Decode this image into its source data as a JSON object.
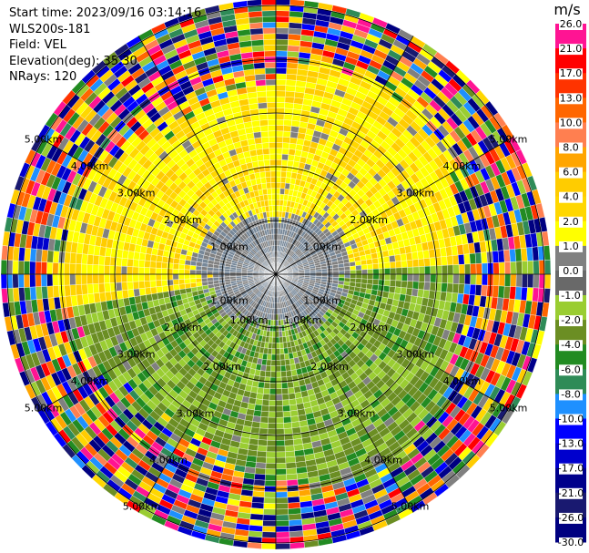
{
  "info": {
    "start_time": "Start time: 2023/09/16 03:14:16",
    "instrument": "WLS200s-181",
    "field": "Field: VEL",
    "elevation": "Elevation(deg): 35.30",
    "nrays": "NRays: 120"
  },
  "chart_data": {
    "type": "heatmap",
    "projection": "polar-ppi",
    "field": "VEL",
    "unit": "m/s",
    "nrays": 120,
    "range_rings": [
      {
        "label": "1.00km"
      },
      {
        "label": "2.00km"
      },
      {
        "label": "3.00km"
      },
      {
        "label": "4.00km"
      },
      {
        "label": "5.00km"
      }
    ],
    "colorbar": {
      "title": "m/s",
      "ticks": [
        "26.0",
        "21.0",
        "17.0",
        "13.0",
        "10.0",
        "8.0",
        "6.0",
        "4.0",
        "2.0",
        "1.0",
        "0.0",
        "-1.0",
        "-2.0",
        "-4.0",
        "-6.0",
        "-8.0",
        "-10.0",
        "-13.0",
        "-17.0",
        "-21.0",
        "-26.0",
        "-30.0"
      ],
      "colors": [
        "#ff1493",
        "#ff0000",
        "#ff3300",
        "#ff6600",
        "#ff7f50",
        "#ffa500",
        "#ffcc00",
        "#ffd700",
        "#ffff00",
        "#808080",
        "#696969",
        "#9acd32",
        "#6b8e23",
        "#228b22",
        "#2e8b57",
        "#1e90ff",
        "#0000ff",
        "#0000cd",
        "#00008b",
        "#191970",
        "#000080"
      ]
    },
    "velocity_zones": [
      {
        "sector": "north",
        "value_range": [
          1.0,
          4.0
        ],
        "rings": [
          1.5,
          4.0
        ]
      },
      {
        "sector": "center",
        "value_range": [
          -1.0,
          1.0
        ],
        "rings": [
          0.0,
          1.6
        ]
      },
      {
        "sector": "east",
        "value_range": [
          -4.0,
          -1.0
        ],
        "rings": [
          0.3,
          4.0
        ]
      },
      {
        "sector": "south",
        "value_range": [
          -4.0,
          -1.0
        ],
        "rings": [
          1.0,
          4.0
        ]
      }
    ]
  }
}
